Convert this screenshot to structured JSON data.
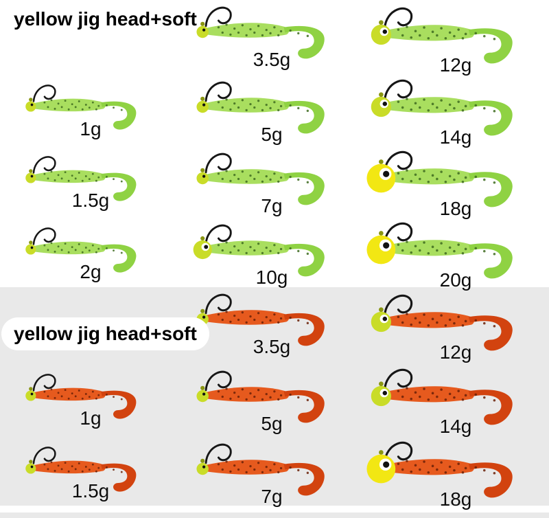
{
  "page": {
    "background_top": "#ffffff",
    "background_bottom": "#e9e9e9"
  },
  "sections": [
    {
      "title": "yellow jig head+soft",
      "variant": "green",
      "colors": {
        "body": "#a9de5f",
        "tail": "#8fd243",
        "speckle": "#3e6b20",
        "head_small": "#c9dc28",
        "head_large": "#f2e713"
      },
      "rows": [
        [
          {
            "type": "title"
          },
          {
            "weight": "3.5g",
            "size": "m",
            "head": "s"
          },
          {
            "weight": "12g",
            "size": "l",
            "head": "m"
          }
        ],
        [
          {
            "weight": "1g",
            "size": "s",
            "head": "s"
          },
          {
            "weight": "5g",
            "size": "m",
            "head": "s"
          },
          {
            "weight": "14g",
            "size": "l",
            "head": "m"
          }
        ],
        [
          {
            "weight": "1.5g",
            "size": "s",
            "head": "s"
          },
          {
            "weight": "7g",
            "size": "m",
            "head": "s"
          },
          {
            "weight": "18g",
            "size": "l",
            "head": "l"
          }
        ],
        [
          {
            "weight": "2g",
            "size": "s",
            "head": "s"
          },
          {
            "weight": "10g",
            "size": "m",
            "head": "m"
          },
          {
            "weight": "20g",
            "size": "l",
            "head": "l"
          }
        ]
      ]
    },
    {
      "title": "yellow jig head+soft",
      "variant": "orange",
      "colors": {
        "body": "#e65a1e",
        "tail": "#d2430f",
        "speckle": "#6a2108",
        "head_small": "#c9dc28",
        "head_large": "#f2e713"
      },
      "rows": [
        [
          {
            "type": "title"
          },
          {
            "weight": "3.5g",
            "size": "m",
            "head": "s"
          },
          {
            "weight": "12g",
            "size": "l",
            "head": "m"
          }
        ],
        [
          {
            "weight": "1g",
            "size": "s",
            "head": "s"
          },
          {
            "weight": "5g",
            "size": "m",
            "head": "s"
          },
          {
            "weight": "14g",
            "size": "l",
            "head": "m"
          }
        ],
        [
          {
            "weight": "1.5g",
            "size": "s",
            "head": "s"
          },
          {
            "weight": "7g",
            "size": "m",
            "head": "s"
          },
          {
            "weight": "18g",
            "size": "l",
            "head": "l"
          }
        ]
      ]
    }
  ]
}
